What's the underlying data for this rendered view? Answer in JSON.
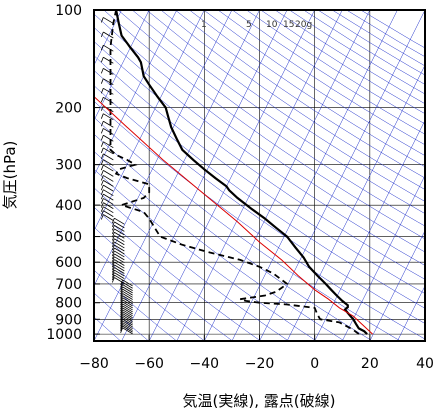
{
  "chart_data": {
    "type": "line",
    "title": "",
    "xlabel": "気温(実線), 露点(破線)",
    "ylabel": "気圧(hPa)",
    "xlim": [
      -80,
      40
    ],
    "ylim": [
      1050,
      100
    ],
    "y_scale": "log",
    "x_ticks": [
      "−80",
      "−60",
      "−40",
      "−20",
      "0",
      "20",
      "40"
    ],
    "y_ticks": [
      "100",
      "200",
      "300",
      "400",
      "500",
      "600",
      "700",
      "800",
      "900",
      "1000"
    ],
    "grid": true,
    "mixing_ratio_labels": [
      "1",
      "5",
      "10",
      "15",
      "20g"
    ],
    "colors": {
      "temperature": "#000000",
      "dewpoint": "#000000",
      "parcel": "#dd0000",
      "dry_adiabat": "#2233cc",
      "isotherm": "#2233cc",
      "grid": "#000000"
    },
    "series": [
      {
        "label": "気温",
        "style": "solid",
        "points": [
          [
            19,
            1000
          ],
          [
            18,
            980
          ],
          [
            16,
            960
          ],
          [
            15,
            930
          ],
          [
            14,
            900
          ],
          [
            13,
            880
          ],
          [
            12,
            860
          ],
          [
            11,
            840
          ],
          [
            12,
            825
          ],
          [
            12,
            815
          ],
          [
            10,
            790
          ],
          [
            8,
            760
          ],
          [
            6,
            730
          ],
          [
            4,
            700
          ],
          [
            1,
            660
          ],
          [
            -2,
            620
          ],
          [
            -4,
            580
          ],
          [
            -7,
            540
          ],
          [
            -10,
            500
          ],
          [
            -14,
            470
          ],
          [
            -18,
            440
          ],
          [
            -23,
            410
          ],
          [
            -28,
            380
          ],
          [
            -31,
            360
          ],
          [
            -32,
            350
          ],
          [
            -36,
            330
          ],
          [
            -40,
            310
          ],
          [
            -44,
            290
          ],
          [
            -48,
            270
          ],
          [
            -50,
            250
          ],
          [
            -52,
            230
          ],
          [
            -53,
            215
          ],
          [
            -54,
            200
          ],
          [
            -57,
            185
          ],
          [
            -60,
            170
          ],
          [
            -62,
            160
          ],
          [
            -63,
            145
          ],
          [
            -64,
            140
          ],
          [
            -67,
            130
          ],
          [
            -70,
            120
          ],
          [
            -71,
            110
          ],
          [
            -72,
            100
          ]
        ]
      },
      {
        "label": "露点",
        "style": "dashed",
        "points": [
          [
            16,
            1000
          ],
          [
            14,
            970
          ],
          [
            9,
            920
          ],
          [
            2,
            900
          ],
          [
            1,
            870
          ],
          [
            0,
            830
          ],
          [
            -10,
            810
          ],
          [
            -20,
            800
          ],
          [
            -25,
            790
          ],
          [
            -27,
            780
          ],
          [
            -18,
            760
          ],
          [
            -14,
            740
          ],
          [
            -12,
            720
          ],
          [
            -10,
            700
          ],
          [
            -15,
            650
          ],
          [
            -20,
            620
          ],
          [
            -27,
            590
          ],
          [
            -38,
            560
          ],
          [
            -48,
            530
          ],
          [
            -56,
            500
          ],
          [
            -58,
            470
          ],
          [
            -60,
            440
          ],
          [
            -62,
            420
          ],
          [
            -70,
            400
          ],
          [
            -62,
            380
          ],
          [
            -60,
            365
          ],
          [
            -60,
            345
          ],
          [
            -68,
            330
          ],
          [
            -72,
            320
          ],
          [
            -71,
            310
          ],
          [
            -65,
            300
          ],
          [
            -68,
            290
          ],
          [
            -72,
            280
          ],
          [
            -74,
            270
          ],
          [
            -74,
            240
          ],
          [
            -74,
            200
          ],
          [
            -74,
            160
          ],
          [
            -74,
            130
          ],
          [
            -73,
            110
          ],
          [
            -72,
            100
          ]
        ]
      },
      {
        "label": "parcel",
        "style": "solid-red",
        "points": [
          [
            21,
            1000
          ],
          [
            17,
            930
          ],
          [
            14,
            880
          ],
          [
            9,
            830
          ],
          [
            5,
            780
          ],
          [
            0,
            730
          ],
          [
            -6,
            660
          ],
          [
            -12,
            590
          ],
          [
            -20,
            520
          ],
          [
            -28,
            450
          ],
          [
            -40,
            370
          ],
          [
            -55,
            290
          ],
          [
            -68,
            230
          ],
          [
            -80,
            185
          ]
        ]
      }
    ]
  }
}
